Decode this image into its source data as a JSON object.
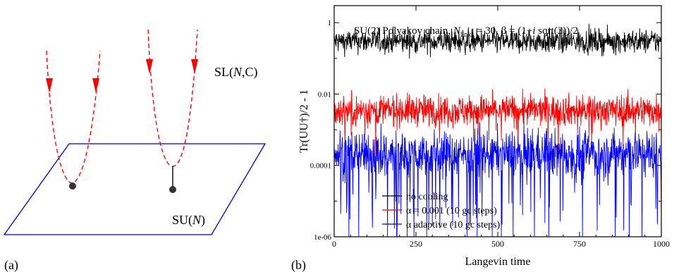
{
  "panel_a": {
    "label": "(a)",
    "plane_label_prefix": "SU(",
    "plane_label_var": "N",
    "plane_label_suffix": ")",
    "manifold_label_prefix": "SL(",
    "manifold_label_var": "N",
    "manifold_label_suffix": ",C)",
    "colors": {
      "plane": "#0000cc",
      "path": "#ff0000",
      "arrow": "#ff0000",
      "point": "#333333"
    }
  },
  "panel_b": {
    "label": "(b)",
    "chart_data": {
      "type": "line",
      "title_parts": [
        "SU(2) Polyakov chain, ",
        "N",
        "links",
        " = 30, β = (1+",
        "i",
        " sqrt(3))/2"
      ],
      "xlabel": "Langevin time",
      "ylabel": "Tr(UU†)/2 - 1",
      "xlim": [
        0,
        1000
      ],
      "ylim": [
        1e-06,
        3
      ],
      "y_scale": "log",
      "x_ticks": [
        0,
        250,
        500,
        750,
        1000
      ],
      "y_ticks": [
        {
          "value": 1e-06,
          "label": "1e-06"
        },
        {
          "value": 0.0001,
          "label": "0.0001"
        },
        {
          "value": 0.01,
          "label": "0.01"
        },
        {
          "value": 1,
          "label": "1"
        }
      ],
      "legend_position": "bottom-left",
      "series": [
        {
          "name": "no cooling",
          "color": "#000000",
          "center": 0.3,
          "spread_decades": 0.17,
          "dip_probability": 0.0,
          "max": 1.6
        },
        {
          "name": "α = 0.001 (10 gc steps)",
          "color": "#ff0000",
          "center": 0.0035,
          "spread_decades": 0.22,
          "dip_probability": 0.02,
          "max": 0.12
        },
        {
          "name": "α adaptive (10 gc steps)",
          "color": "#0000ff",
          "center": 0.00022,
          "spread_decades": 0.32,
          "dip_probability": 0.1,
          "max": 0.003
        }
      ]
    }
  }
}
